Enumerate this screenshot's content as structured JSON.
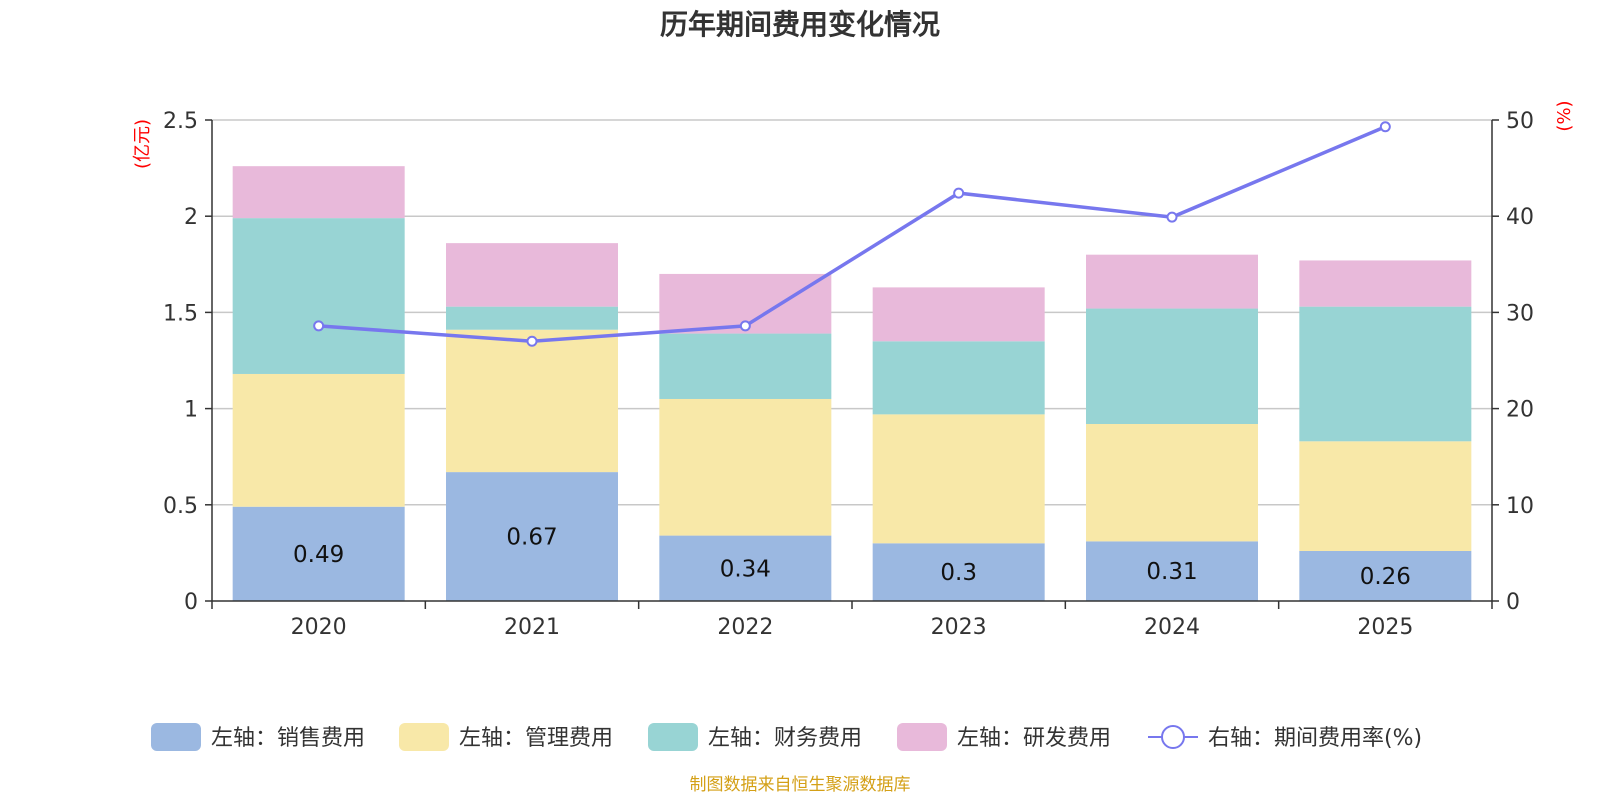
{
  "chart_data": {
    "type": "bar",
    "stacked": true,
    "title": "历年期间费用变化情况",
    "categories": [
      "2020",
      "2021",
      "2022",
      "2023",
      "2024",
      "2025"
    ],
    "y_left": {
      "label": "(亿元)",
      "min": 0,
      "max": 2.5,
      "ticks": [
        "0",
        "0.5",
        "1",
        "1.5",
        "2",
        "2.5"
      ]
    },
    "y_right": {
      "label": "(%)",
      "min": 0,
      "max": 50,
      "ticks": [
        "0",
        "10",
        "20",
        "30",
        "40",
        "50"
      ]
    },
    "series": [
      {
        "name": "左轴：销售费用",
        "axis": "left",
        "color": "#9bb8e1",
        "values": [
          0.49,
          0.67,
          0.34,
          0.3,
          0.31,
          0.26
        ],
        "labels": [
          "0.49",
          "0.67",
          "0.34",
          "0.3",
          "0.31",
          "0.26"
        ]
      },
      {
        "name": "左轴：管理费用",
        "axis": "left",
        "color": "#f8e8a8",
        "values": [
          0.69,
          0.74,
          0.71,
          0.67,
          0.61,
          0.57
        ]
      },
      {
        "name": "左轴：财务费用",
        "axis": "left",
        "color": "#98d4d4",
        "values": [
          0.81,
          0.12,
          0.34,
          0.38,
          0.6,
          0.7
        ]
      },
      {
        "name": "左轴：研发费用",
        "axis": "left",
        "color": "#e8b9da",
        "values": [
          0.27,
          0.33,
          0.31,
          0.28,
          0.28,
          0.24
        ]
      },
      {
        "name": "右轴：期间费用率(%)",
        "axis": "right",
        "type": "line",
        "color": "#7777ee",
        "values": [
          28.6,
          27.0,
          28.6,
          42.4,
          39.9,
          49.3
        ]
      }
    ],
    "grid": true,
    "legend": "bottom",
    "source": "制图数据来自恒生聚源数据库"
  }
}
